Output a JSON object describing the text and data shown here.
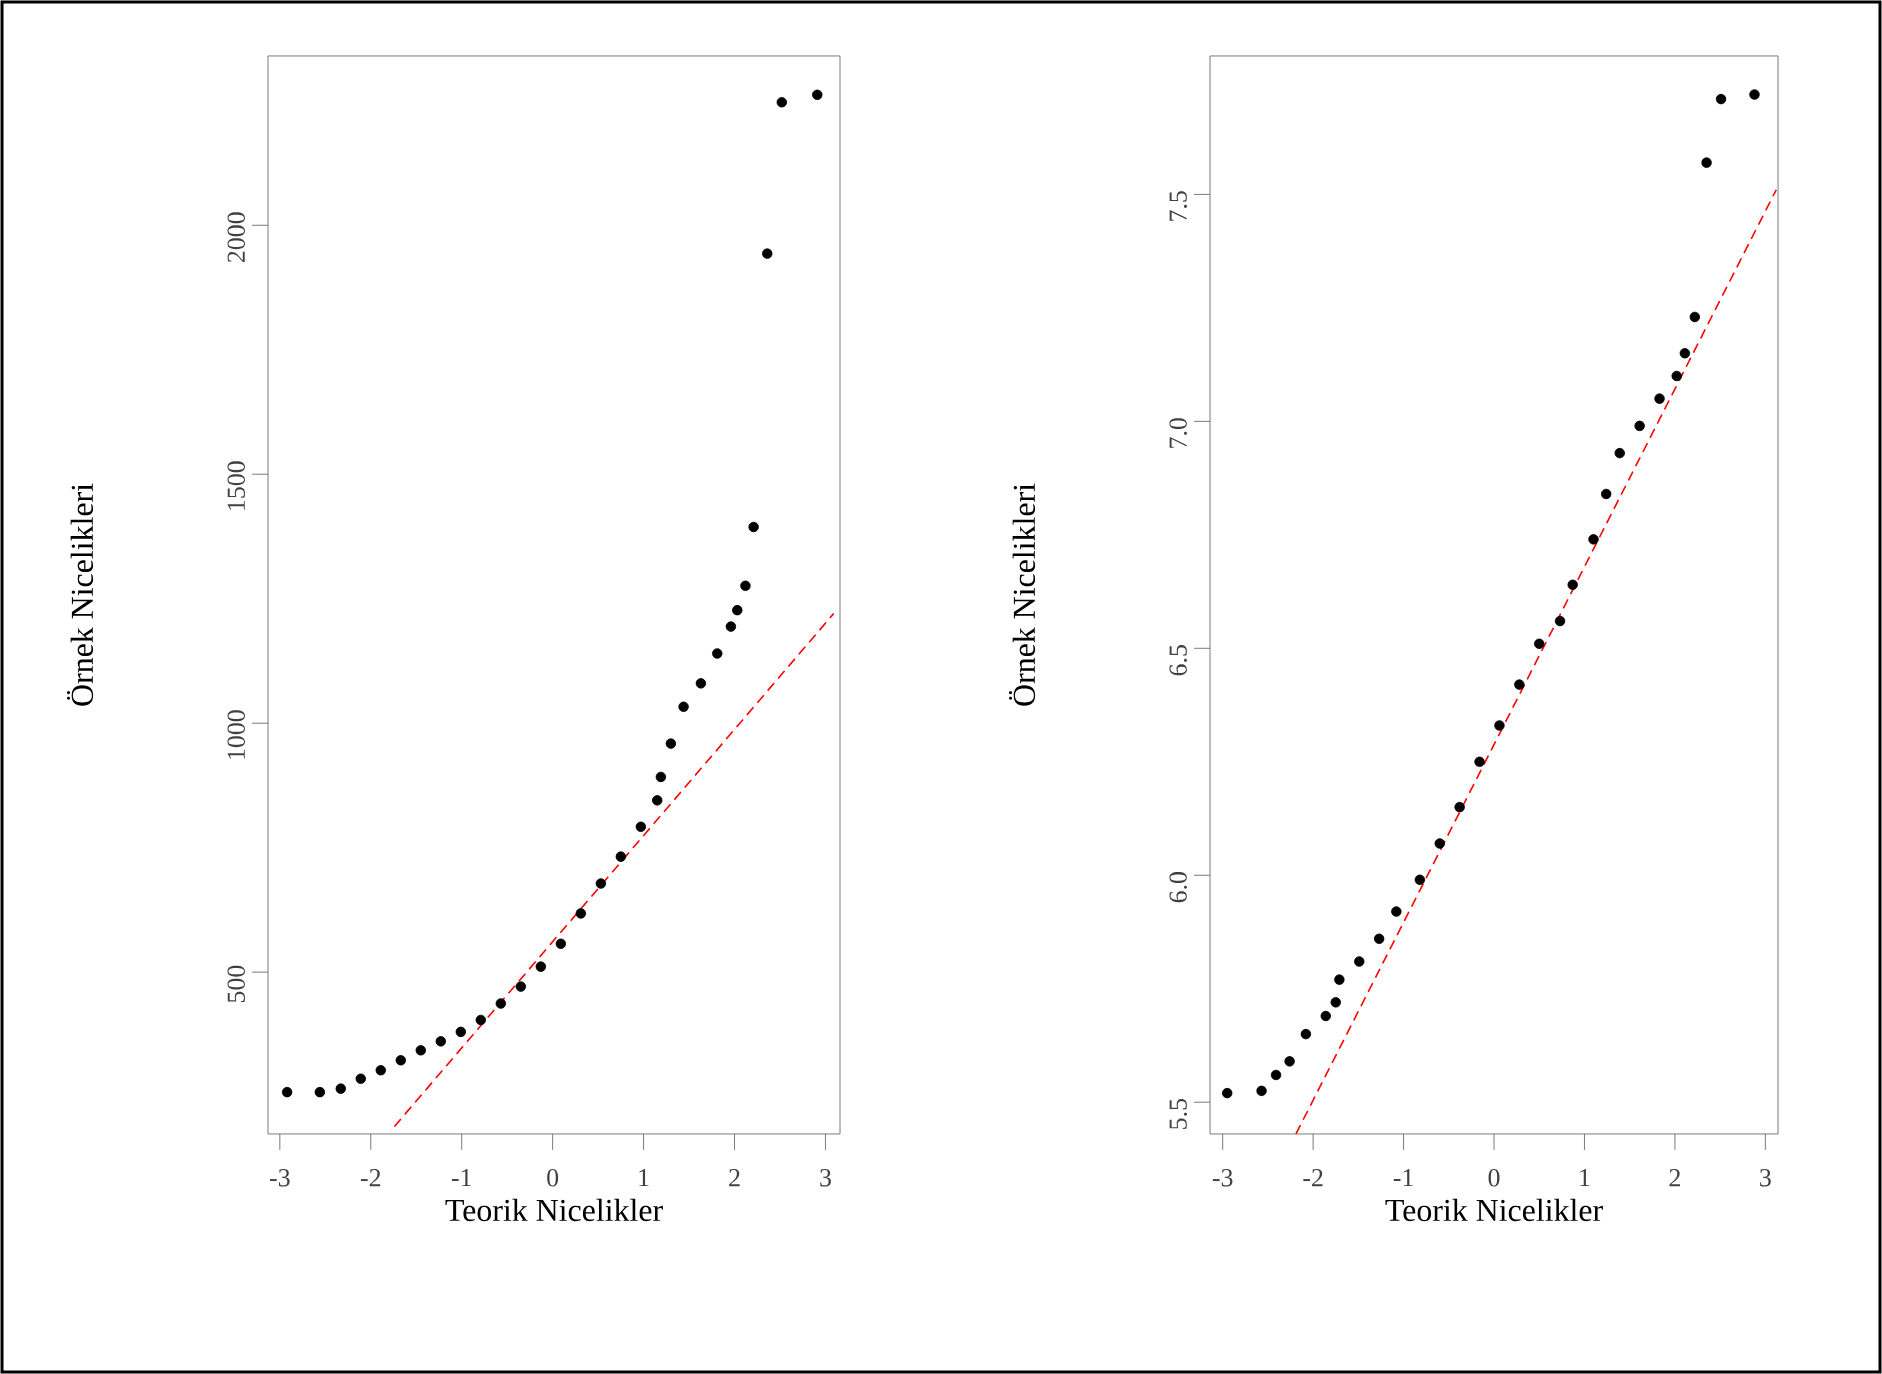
{
  "chart_data": [
    {
      "type": "scatter",
      "xlabel": "Teorik Nicelikler",
      "ylabel": "Örnek Nicelikleri",
      "xlim": [
        -3.13,
        3.16
      ],
      "ylim": [
        175,
        2340
      ],
      "xticks": [
        -3,
        -2,
        -1,
        0,
        1,
        2,
        3
      ],
      "yticks": [
        500,
        1000,
        1500,
        2000
      ],
      "series": [
        {
          "color": "#000000",
          "marker": "circle",
          "x": [
            -2.92,
            -2.56,
            -2.33,
            -2.11,
            -1.89,
            -1.67,
            -1.45,
            -1.23,
            -1.01,
            -0.79,
            -0.57,
            -0.35,
            -0.13,
            0.09,
            0.31,
            0.53,
            0.75,
            0.97,
            1.15,
            1.19,
            1.3,
            1.44,
            1.63,
            1.81,
            1.96,
            2.03,
            2.12,
            2.21,
            2.36,
            2.52,
            2.91
          ],
          "values": [
            259,
            259,
            266,
            286,
            303,
            323,
            343,
            361,
            380,
            404,
            437,
            471,
            511,
            557,
            618,
            678,
            732,
            792,
            845,
            892,
            959,
            1033,
            1080,
            1140,
            1194,
            1227,
            1276,
            1394,
            1943,
            2247,
            2262
          ]
        },
        {
          "type": "line",
          "color": "#ff0000",
          "line_style": "dashed",
          "marker": "none",
          "x": [
            -1.74,
            3.09
          ],
          "values": [
            190,
            1220
          ]
        }
      ]
    },
    {
      "type": "scatter",
      "xlabel": "Teorik Nicelikler",
      "ylabel": "Örnek Nicelikleri",
      "xlim": [
        -3.14,
        3.14
      ],
      "ylim": [
        5.43,
        7.805
      ],
      "xticks": [
        -3,
        -2,
        -1,
        0,
        1,
        2,
        3
      ],
      "yticks": [
        5.5,
        {
          "value": 6,
          "label": "6.0"
        },
        6.5,
        {
          "value": 7,
          "label": "7.0"
        },
        7.5
      ],
      "series": [
        {
          "color": "#000000",
          "marker": "circle",
          "x": [
            -2.95,
            -2.57,
            -2.41,
            -2.26,
            -2.08,
            -1.86,
            -1.75,
            -1.71,
            -1.49,
            -1.27,
            -1.08,
            -0.82,
            -0.6,
            -0.38,
            -0.16,
            0.06,
            0.28,
            0.5,
            0.73,
            0.87,
            1.1,
            1.24,
            1.39,
            1.61,
            1.83,
            2.02,
            2.11,
            2.22,
            2.35,
            2.51,
            2.88
          ],
          "values": [
            5.52,
            5.525,
            5.56,
            5.59,
            5.65,
            5.69,
            5.72,
            5.77,
            5.81,
            5.86,
            5.92,
            5.99,
            6.07,
            6.15,
            6.25,
            6.33,
            6.42,
            6.51,
            6.56,
            6.64,
            6.74,
            6.84,
            6.93,
            6.99,
            7.05,
            7.1,
            7.15,
            7.23,
            7.57,
            7.71,
            7.72
          ]
        },
        {
          "type": "line",
          "color": "#ff0000",
          "line_style": "dashed",
          "marker": "none",
          "x": [
            -2.19,
            3.12
          ],
          "values": [
            5.43,
            7.51
          ]
        }
      ]
    }
  ]
}
